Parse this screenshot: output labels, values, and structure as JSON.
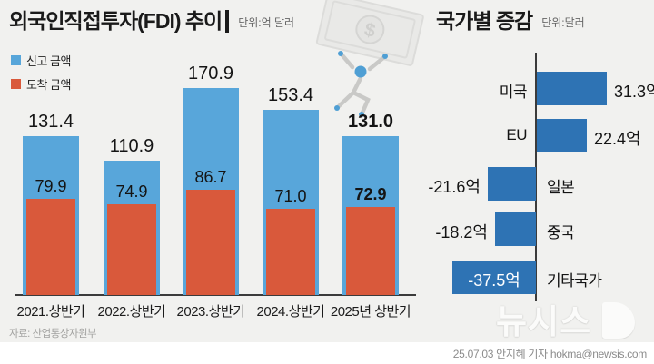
{
  "left_chart": {
    "title": "외국인직접투자(FDI) 추이",
    "unit": "단위:억 달러",
    "legend": [
      {
        "label": "신고 금액",
        "color": "#58a6da"
      },
      {
        "label": "도착 금액",
        "color": "#d9593b"
      }
    ],
    "source": "자료: 산업통상자원부"
  },
  "right_chart": {
    "title": "국가별 증감",
    "unit": "단위:달러"
  },
  "chart_data": [
    {
      "type": "bar",
      "title": "외국인직접투자(FDI) 추이",
      "unit": "억 달러",
      "categories": [
        "2021.상반기",
        "2022.상반기",
        "2023.상반기",
        "2024.상반기",
        "2025년 상반기"
      ],
      "series": [
        {
          "name": "신고 금액",
          "color": "#58a6da",
          "values": [
            131.4,
            110.9,
            170.9,
            153.4,
            131.0
          ]
        },
        {
          "name": "도착 금액",
          "color": "#d9593b",
          "values": [
            79.9,
            74.9,
            86.7,
            71.0,
            72.9
          ]
        }
      ],
      "emphasized_index": 4,
      "ylim": [
        0,
        180
      ],
      "grid": false,
      "value_labels": true,
      "legend_position": "top-left"
    },
    {
      "type": "bar",
      "orientation": "horizontal",
      "title": "국가별 증감",
      "unit": "달러",
      "categories": [
        "미국",
        "EU",
        "일본",
        "중국",
        "기타국가"
      ],
      "values": [
        31.3,
        22.4,
        -21.6,
        -18.2,
        -37.5
      ],
      "value_labels": [
        "31.3억",
        "22.4억",
        "-21.6억",
        "-18.2억",
        "-37.5억"
      ],
      "bar_color": "#2e73b4",
      "xlim": [
        -40,
        35
      ]
    }
  ],
  "colors": {
    "background": "#f1f1ef",
    "reported_blue": "#58a6da",
    "arrived_red": "#d9593b",
    "country_blue": "#2e73b4",
    "axis": "#3b3b3b",
    "title_text": "#1a1a1a"
  },
  "watermark": {
    "money_symbol": "$",
    "logo_text": "뉴시스"
  },
  "footer": {
    "credit": "25.07.03 안지혜 기자 hokma@newsis.com"
  }
}
